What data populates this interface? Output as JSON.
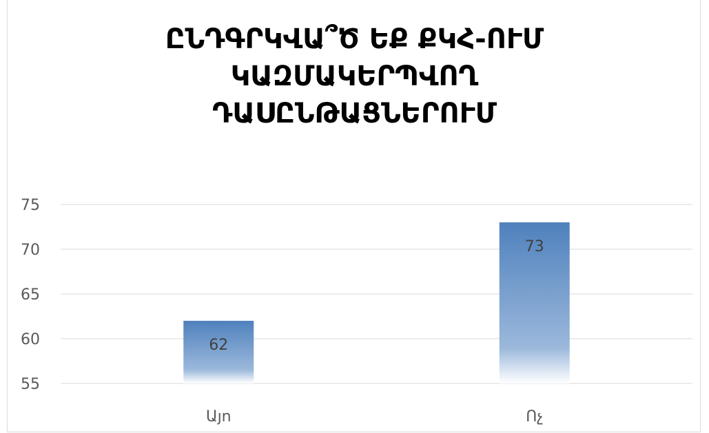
{
  "chart_data": {
    "type": "bar",
    "title_lines": [
      "ԸՆԴԳՐԿՎԱ՞Ծ ԵՔ ՔԿՀ-ՈՒՄ",
      "ԿԱԶՄԱԿԵՐՊՎՈՂ",
      "ԴԱՍԸՆԹԱՑՆԵՐՈՒՄ"
    ],
    "categories": [
      "Այո",
      "Ոչ"
    ],
    "values": [
      62,
      73
    ],
    "ylim": [
      55,
      75
    ],
    "yticks": [
      55,
      60,
      65,
      70,
      75
    ],
    "grid": true,
    "colors": {
      "bar_top": "#4f81bd",
      "bar_bottom": "#ffffff",
      "grid": "#d9d9d9",
      "axis_text": "#595959",
      "label_text": "#404040"
    }
  }
}
